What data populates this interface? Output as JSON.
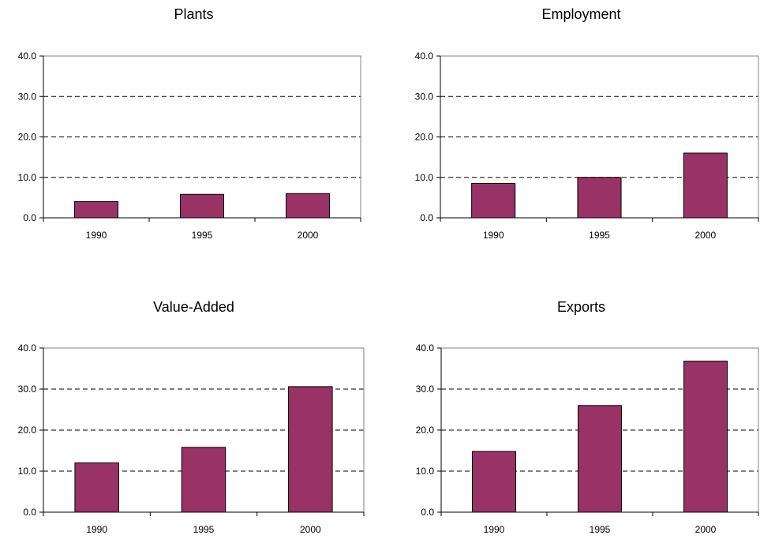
{
  "chart_data": [
    {
      "type": "bar",
      "title": "Plants",
      "categories": [
        "1990",
        "1995",
        "2000"
      ],
      "values": [
        4.0,
        5.8,
        6.0
      ],
      "ylim": [
        0,
        40
      ],
      "yticks": [
        "0.0",
        "10.0",
        "20.0",
        "30.0",
        "40.0"
      ],
      "grid": "dashed horizontal",
      "bar_color": "#993366"
    },
    {
      "type": "bar",
      "title": "Employment",
      "categories": [
        "1990",
        "1995",
        "2000"
      ],
      "values": [
        8.5,
        10.0,
        16.0
      ],
      "ylim": [
        0,
        40
      ],
      "yticks": [
        "0.0",
        "10.0",
        "20.0",
        "30.0",
        "40.0"
      ],
      "grid": "dashed horizontal",
      "bar_color": "#993366"
    },
    {
      "type": "bar",
      "title": "Value-Added",
      "categories": [
        "1990",
        "1995",
        "2000"
      ],
      "values": [
        12.0,
        15.8,
        30.6
      ],
      "ylim": [
        0,
        40
      ],
      "yticks": [
        "0.0",
        "10.0",
        "20.0",
        "30.0",
        "40.0"
      ],
      "grid": "dashed horizontal",
      "bar_color": "#993366"
    },
    {
      "type": "bar",
      "title": "Exports",
      "categories": [
        "1990",
        "1995",
        "2000"
      ],
      "values": [
        14.8,
        26.0,
        36.8
      ],
      "ylim": [
        0,
        40
      ],
      "yticks": [
        "0.0",
        "10.0",
        "20.0",
        "30.0",
        "40.0"
      ],
      "grid": "dashed horizontal",
      "bar_color": "#993366"
    }
  ]
}
